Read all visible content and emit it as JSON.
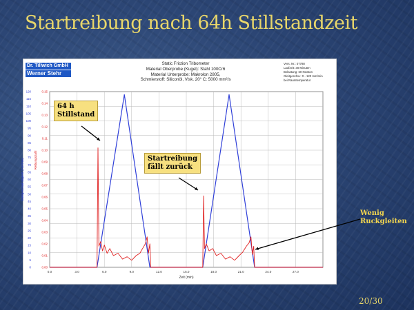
{
  "slide": {
    "title": "Startreibung nach 64h Stillstandzeit",
    "page_number": "20/30",
    "colors": {
      "title": "#e8d66a",
      "background": "#2c4675"
    }
  },
  "logo": {
    "line1": "Dr. Tillwich GmbH",
    "line2": "Werner Stehr",
    "color": "#1f58c4"
  },
  "header": {
    "center_lines": [
      "Static Friction Tribometer",
      "Material Oberprobe (Kugel): Stahl 100Cr6",
      "Material Unterprobe: Makrolon 2805,",
      "Schmierstoff: Siliconöl, Visk. 20° C: 5000 mm²/s"
    ],
    "right_lines": [
      "Vers. Nr.: 07788",
      "Laufzeit: 30 Minuten",
      "Belastung: 60 Newton",
      "Gleitgeschw.: 0 - 120 mm/min",
      "bei Raumtemperatur"
    ]
  },
  "annotations": {
    "stillstand": "64 h\nStillstand",
    "startreibung": "Startreibung\nfällt zurück",
    "rueckgleiten": "Wenig\nRuckgleiten"
  },
  "chart_data": {
    "type": "line",
    "xlabel": "Zeit (min)",
    "ylabel_left": "Gleitgeschwindigkeit (mm/min)",
    "ylabel_right": "Reibungszahl",
    "xlim": [
      0,
      30
    ],
    "x_ticks": [
      "0.0",
      "3.0",
      "6.0",
      "9.0",
      "12.0",
      "15.0",
      "18.0",
      "21.0",
      "24.0",
      "27.0"
    ],
    "y_left_ticks": [
      "0",
      "5",
      "10",
      "15",
      "20",
      "25",
      "30",
      "35",
      "40",
      "45",
      "50",
      "55",
      "60",
      "65",
      "70",
      "75",
      "80",
      "85",
      "90",
      "95",
      "100",
      "105",
      "110",
      "115",
      "120"
    ],
    "y_right_ticks": [
      "0.00",
      "0.01",
      "0.02",
      "0.03",
      "0.04",
      "0.05",
      "0.06",
      "0.07",
      "0.08",
      "0.09",
      "0.10",
      "0.11",
      "0.12",
      "0.13",
      "0.14",
      "0.15"
    ],
    "ylim_left": [
      0,
      120
    ],
    "ylim_right": [
      0,
      0.15
    ],
    "grid": true,
    "series": [
      {
        "axis": "left",
        "color": "#2f3fd8",
        "points": [
          [
            0,
            0
          ],
          [
            5.2,
            0
          ],
          [
            8.2,
            118
          ],
          [
            11.0,
            0
          ],
          [
            16.8,
            0
          ],
          [
            19.7,
            118
          ],
          [
            22.5,
            0
          ],
          [
            30,
            0
          ]
        ]
      },
      {
        "axis": "right",
        "color": "#e02020",
        "points": [
          [
            0,
            0
          ],
          [
            5.2,
            0
          ],
          [
            5.3,
            0.102
          ],
          [
            5.4,
            0.018
          ],
          [
            5.6,
            0.022
          ],
          [
            5.8,
            0.014
          ],
          [
            6.0,
            0.019
          ],
          [
            6.3,
            0.012
          ],
          [
            6.6,
            0.016
          ],
          [
            7.0,
            0.01
          ],
          [
            7.5,
            0.012
          ],
          [
            8.0,
            0.007
          ],
          [
            8.5,
            0.009
          ],
          [
            9.0,
            0.006
          ],
          [
            9.5,
            0.01
          ],
          [
            9.9,
            0.012
          ],
          [
            10.2,
            0.016
          ],
          [
            10.5,
            0.02
          ],
          [
            10.7,
            0.026
          ],
          [
            10.85,
            0.012
          ],
          [
            11.0,
            0.02
          ],
          [
            11.1,
            0
          ],
          [
            16.8,
            0
          ],
          [
            16.9,
            0.061
          ],
          [
            17.0,
            0.016
          ],
          [
            17.2,
            0.02
          ],
          [
            17.5,
            0.014
          ],
          [
            17.9,
            0.016
          ],
          [
            18.3,
            0.01
          ],
          [
            18.8,
            0.012
          ],
          [
            19.3,
            0.007
          ],
          [
            19.8,
            0.009
          ],
          [
            20.3,
            0.006
          ],
          [
            20.8,
            0.01
          ],
          [
            21.2,
            0.013
          ],
          [
            21.6,
            0.018
          ],
          [
            21.9,
            0.021
          ],
          [
            22.1,
            0.026
          ],
          [
            22.25,
            0.011
          ],
          [
            22.4,
            0.018
          ],
          [
            22.5,
            0
          ],
          [
            30,
            0
          ]
        ]
      }
    ]
  }
}
